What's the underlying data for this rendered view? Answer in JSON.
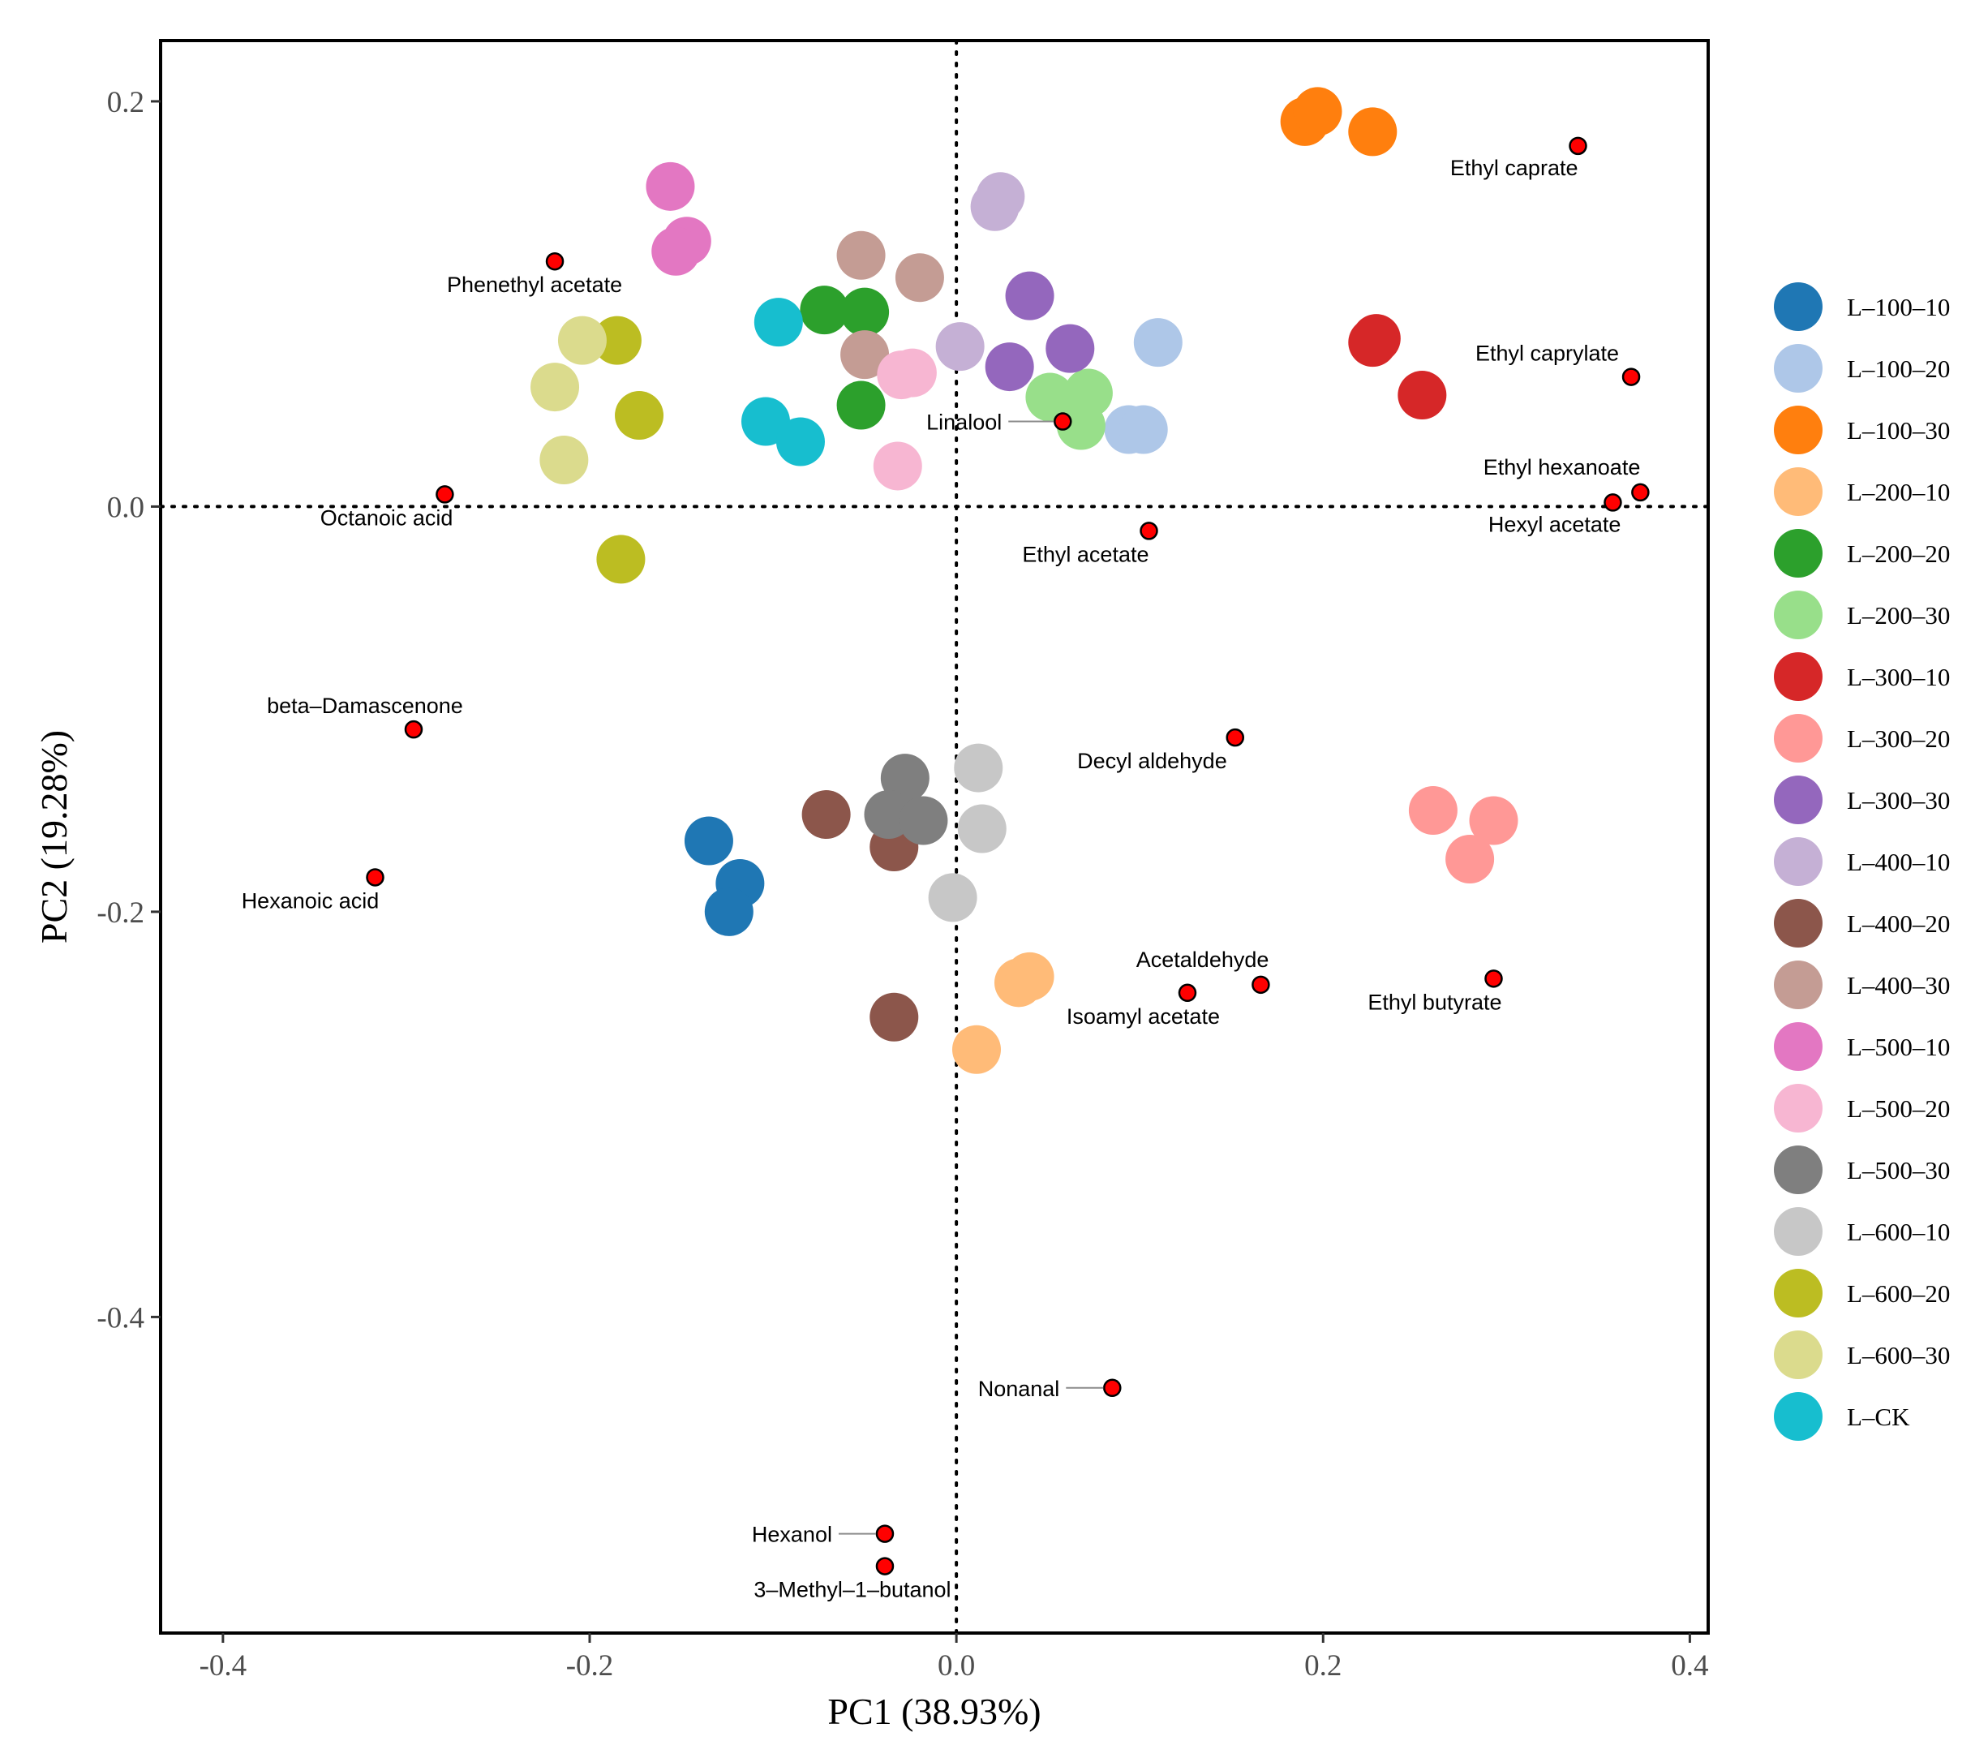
{
  "chart_data": {
    "type": "scatter",
    "title": "",
    "xlabel": "PC1 (38.93%)",
    "ylabel": "PC2 (19.28%)",
    "xlim": [
      -0.434,
      0.41
    ],
    "ylim": [
      -0.556,
      0.23
    ],
    "x_ticks": [
      "-0.4",
      "-0.2",
      "0.0",
      "0.2",
      "0.4"
    ],
    "y_ticks": [
      "0.2",
      "0.0",
      "-0.2",
      "-0.4"
    ],
    "x_tick_values": [
      -0.4,
      -0.2,
      0.0,
      0.2,
      0.4
    ],
    "y_tick_values": [
      0.2,
      0.0,
      -0.2,
      -0.4
    ],
    "reference_lines": {
      "x": 0,
      "y": 0,
      "style": "dotted"
    },
    "grid": false,
    "legend_position": "right",
    "series": [
      {
        "name": "L–100–10",
        "color": "#1f77b4",
        "points": [
          [
            -0.135,
            -0.165
          ],
          [
            -0.118,
            -0.186
          ],
          [
            -0.124,
            -0.2
          ]
        ]
      },
      {
        "name": "L–100–20",
        "color": "#aec7e8",
        "points": [
          [
            0.11,
            0.081
          ],
          [
            0.094,
            0.038
          ],
          [
            0.102,
            0.038
          ]
        ]
      },
      {
        "name": "L–100–30",
        "color": "#ff7f0e",
        "points": [
          [
            0.19,
            0.19
          ],
          [
            0.197,
            0.195
          ],
          [
            0.227,
            0.185
          ]
        ]
      },
      {
        "name": "L–200–10",
        "color": "#ffbb78",
        "points": [
          [
            0.034,
            -0.235
          ],
          [
            0.04,
            -0.232
          ],
          [
            0.011,
            -0.268
          ]
        ]
      },
      {
        "name": "L–200–20",
        "color": "#2ca02c",
        "points": [
          [
            -0.072,
            0.097
          ],
          [
            -0.05,
            0.096
          ],
          [
            -0.052,
            0.05
          ]
        ]
      },
      {
        "name": "L–200–30",
        "color": "#98df8a",
        "points": [
          [
            0.051,
            0.054
          ],
          [
            0.072,
            0.056
          ],
          [
            0.068,
            0.04
          ]
        ]
      },
      {
        "name": "L–300–10",
        "color": "#d62728",
        "points": [
          [
            0.229,
            0.083
          ],
          [
            0.227,
            0.081
          ],
          [
            0.254,
            0.055
          ]
        ]
      },
      {
        "name": "L–300–20",
        "color": "#ff9896",
        "points": [
          [
            0.26,
            -0.15
          ],
          [
            0.293,
            -0.155
          ],
          [
            0.28,
            -0.174
          ]
        ]
      },
      {
        "name": "L–300–30",
        "color": "#9467bd",
        "points": [
          [
            0.04,
            0.104
          ],
          [
            0.062,
            0.078
          ],
          [
            0.029,
            0.069
          ]
        ]
      },
      {
        "name": "L–400–10",
        "color": "#c5b0d5",
        "points": [
          [
            0.024,
            0.153
          ],
          [
            0.021,
            0.148
          ],
          [
            0.002,
            0.079
          ]
        ]
      },
      {
        "name": "L–400–20",
        "color": "#8c564b",
        "points": [
          [
            -0.071,
            -0.152
          ],
          [
            -0.034,
            -0.168
          ],
          [
            -0.034,
            -0.252
          ]
        ]
      },
      {
        "name": "L–400–30",
        "color": "#c49c94",
        "points": [
          [
            -0.052,
            0.124
          ],
          [
            -0.02,
            0.113
          ],
          [
            -0.05,
            0.075
          ]
        ]
      },
      {
        "name": "L–500–10",
        "color": "#e377c2",
        "points": [
          [
            -0.156,
            0.158
          ],
          [
            -0.147,
            0.131
          ],
          [
            -0.153,
            0.126
          ]
        ]
      },
      {
        "name": "L–500–20",
        "color": "#f7b6d2",
        "points": [
          [
            -0.024,
            0.066
          ],
          [
            -0.03,
            0.065
          ],
          [
            -0.032,
            0.02
          ]
        ]
      },
      {
        "name": "L–500–30",
        "color": "#7f7f7f",
        "points": [
          [
            -0.028,
            -0.134
          ],
          [
            -0.037,
            -0.152
          ],
          [
            -0.018,
            -0.155
          ]
        ]
      },
      {
        "name": "L–600–10",
        "color": "#c7c7c7",
        "points": [
          [
            0.012,
            -0.129
          ],
          [
            0.014,
            -0.159
          ],
          [
            -0.002,
            -0.193
          ]
        ]
      },
      {
        "name": "L–600–20",
        "color": "#bcbd22",
        "points": [
          [
            -0.185,
            0.082
          ],
          [
            -0.173,
            0.045
          ],
          [
            -0.183,
            -0.026
          ]
        ]
      },
      {
        "name": "L–600–30",
        "color": "#dbdb8d",
        "points": [
          [
            -0.204,
            0.082
          ],
          [
            -0.219,
            0.059
          ],
          [
            -0.214,
            0.023
          ]
        ]
      },
      {
        "name": "L–CK",
        "color": "#17becf",
        "points": [
          [
            -0.097,
            0.091
          ],
          [
            -0.104,
            0.042
          ],
          [
            -0.085,
            0.032
          ]
        ]
      }
    ],
    "loadings": {
      "color": "#ff0000",
      "items": [
        {
          "label": "Ethyl caprate",
          "x": 0.339,
          "y": 0.178,
          "anchor": "end",
          "dx": 0,
          "dy": 36,
          "leader": false
        },
        {
          "label": "Phenethyl acetate",
          "x": -0.219,
          "y": 0.121,
          "anchor": "middle",
          "dx": -25,
          "dy": 38,
          "leader": false
        },
        {
          "label": "Ethyl caprylate",
          "x": 0.368,
          "y": 0.064,
          "anchor": "end",
          "dx": -15,
          "dy": -20,
          "leader": false
        },
        {
          "label": "Linalool",
          "x": 0.058,
          "y": 0.042,
          "anchor": "end",
          "dx": -75,
          "dy": 10,
          "leader": true
        },
        {
          "label": "Ethyl hexanoate",
          "x": 0.373,
          "y": 0.007,
          "anchor": "end",
          "dx": 0,
          "dy": -22,
          "leader": false
        },
        {
          "label": "Hexyl acetate",
          "x": 0.358,
          "y": 0.002,
          "anchor": "end",
          "dx": 10,
          "dy": 36,
          "leader": false
        },
        {
          "label": "Octanoic acid",
          "x": -0.279,
          "y": 0.006,
          "anchor": "end",
          "dx": 10,
          "dy": 38,
          "leader": false
        },
        {
          "label": "Ethyl acetate",
          "x": 0.105,
          "y": -0.012,
          "anchor": "end",
          "dx": 0,
          "dy": 38,
          "leader": false
        },
        {
          "label": "beta–Damascenone",
          "x": -0.296,
          "y": -0.11,
          "anchor": "middle",
          "dx": -60,
          "dy": -20,
          "leader": false
        },
        {
          "label": "Decyl aldehyde",
          "x": 0.152,
          "y": -0.114,
          "anchor": "end",
          "dx": -10,
          "dy": 38,
          "leader": false
        },
        {
          "label": "Hexanoic acid",
          "x": -0.317,
          "y": -0.183,
          "anchor": "middle",
          "dx": -80,
          "dy": 38,
          "leader": false
        },
        {
          "label": "Acetaldehyde",
          "x": 0.166,
          "y": -0.236,
          "anchor": "end",
          "dx": 10,
          "dy": -22,
          "leader": false
        },
        {
          "label": "Isoamyl acetate",
          "x": 0.126,
          "y": -0.24,
          "anchor": "end",
          "dx": 40,
          "dy": 38,
          "leader": false
        },
        {
          "label": "Ethyl butyrate",
          "x": 0.293,
          "y": -0.233,
          "anchor": "end",
          "dx": 10,
          "dy": 38,
          "leader": false
        },
        {
          "label": "Nonanal",
          "x": 0.085,
          "y": -0.435,
          "anchor": "end",
          "dx": -65,
          "dy": 10,
          "leader": true
        },
        {
          "label": "Hexanol",
          "x": -0.039,
          "y": -0.507,
          "anchor": "end",
          "dx": -65,
          "dy": 10,
          "leader": true
        },
        {
          "label": "3–Methyl–1–butanol",
          "x": -0.039,
          "y": -0.523,
          "anchor": "middle",
          "dx": -40,
          "dy": 38,
          "leader": false
        }
      ]
    }
  }
}
